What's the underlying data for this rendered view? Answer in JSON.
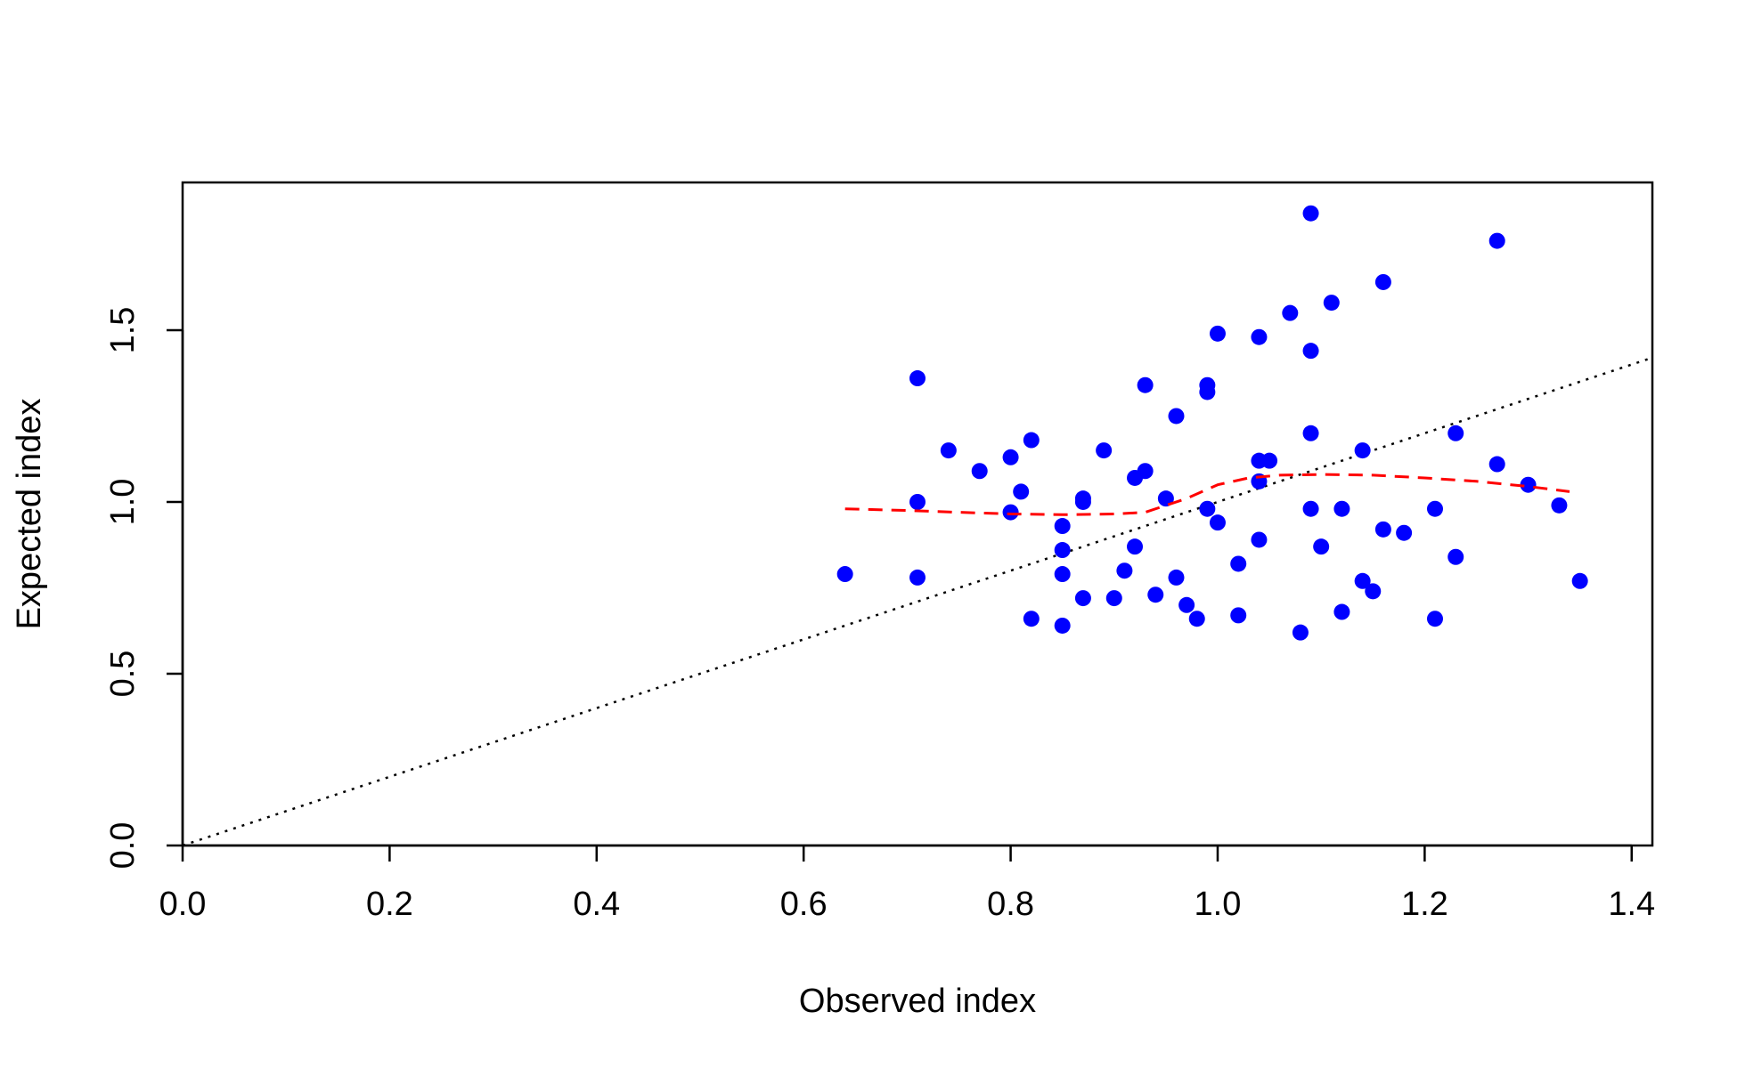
{
  "chart_data": {
    "type": "scatter",
    "title": "",
    "xlabel": "Observed index",
    "ylabel": "Expected index",
    "xlim": [
      0.0,
      1.42
    ],
    "ylim": [
      0.0,
      1.93
    ],
    "xticks": [
      "0.0",
      "0.2",
      "0.4",
      "0.6",
      "0.8",
      "1.0",
      "1.2",
      "1.4"
    ],
    "yticks": [
      "0.0",
      "0.5",
      "1.0",
      "1.5"
    ],
    "grid": false,
    "points_color": "#0000ff",
    "points": [
      [
        0.64,
        0.79
      ],
      [
        0.71,
        1.36
      ],
      [
        0.71,
        1.0
      ],
      [
        0.71,
        0.78
      ],
      [
        0.74,
        1.15
      ],
      [
        0.77,
        1.09
      ],
      [
        0.8,
        1.13
      ],
      [
        0.8,
        0.97
      ],
      [
        0.81,
        1.03
      ],
      [
        0.82,
        1.18
      ],
      [
        0.82,
        0.66
      ],
      [
        0.85,
        0.93
      ],
      [
        0.85,
        0.86
      ],
      [
        0.85,
        0.79
      ],
      [
        0.85,
        0.64
      ],
      [
        0.87,
        1.01
      ],
      [
        0.87,
        1.0
      ],
      [
        0.87,
        0.72
      ],
      [
        0.89,
        1.15
      ],
      [
        0.9,
        0.72
      ],
      [
        0.91,
        0.8
      ],
      [
        0.92,
        1.07
      ],
      [
        0.92,
        0.87
      ],
      [
        0.93,
        1.09
      ],
      [
        0.93,
        1.34
      ],
      [
        0.94,
        0.73
      ],
      [
        0.95,
        1.01
      ],
      [
        0.96,
        1.25
      ],
      [
        0.96,
        0.78
      ],
      [
        0.97,
        0.7
      ],
      [
        0.98,
        0.66
      ],
      [
        0.99,
        1.34
      ],
      [
        0.99,
        1.32
      ],
      [
        0.99,
        0.98
      ],
      [
        1.0,
        1.49
      ],
      [
        1.0,
        0.94
      ],
      [
        1.02,
        0.82
      ],
      [
        1.02,
        0.67
      ],
      [
        1.04,
        1.48
      ],
      [
        1.04,
        1.12
      ],
      [
        1.04,
        1.06
      ],
      [
        1.04,
        0.89
      ],
      [
        1.05,
        1.12
      ],
      [
        1.07,
        1.55
      ],
      [
        1.08,
        0.62
      ],
      [
        1.09,
        1.84
      ],
      [
        1.09,
        1.44
      ],
      [
        1.09,
        1.2
      ],
      [
        1.09,
        0.98
      ],
      [
        1.1,
        0.87
      ],
      [
        1.11,
        1.58
      ],
      [
        1.12,
        0.98
      ],
      [
        1.12,
        0.68
      ],
      [
        1.14,
        1.15
      ],
      [
        1.14,
        0.77
      ],
      [
        1.15,
        0.74
      ],
      [
        1.16,
        1.64
      ],
      [
        1.16,
        0.92
      ],
      [
        1.18,
        0.91
      ],
      [
        1.21,
        0.98
      ],
      [
        1.21,
        0.66
      ],
      [
        1.23,
        1.2
      ],
      [
        1.23,
        0.84
      ],
      [
        1.27,
        1.76
      ],
      [
        1.27,
        1.11
      ],
      [
        1.3,
        1.05
      ],
      [
        1.33,
        0.99
      ],
      [
        1.35,
        0.77
      ]
    ],
    "reference_line": {
      "style": "dotted",
      "color": "#000000",
      "from": [
        0.0,
        0.0
      ],
      "to": [
        1.42,
        1.42
      ]
    },
    "smooth_line": {
      "style": "dashed",
      "color": "#ff0000",
      "points": [
        [
          0.64,
          0.98
        ],
        [
          0.7,
          0.975
        ],
        [
          0.75,
          0.97
        ],
        [
          0.8,
          0.965
        ],
        [
          0.85,
          0.963
        ],
        [
          0.9,
          0.965
        ],
        [
          0.93,
          0.97
        ],
        [
          0.97,
          1.01
        ],
        [
          1.0,
          1.05
        ],
        [
          1.03,
          1.07
        ],
        [
          1.06,
          1.078
        ],
        [
          1.1,
          1.08
        ],
        [
          1.15,
          1.078
        ],
        [
          1.2,
          1.07
        ],
        [
          1.25,
          1.06
        ],
        [
          1.3,
          1.045
        ],
        [
          1.34,
          1.03
        ]
      ]
    }
  }
}
